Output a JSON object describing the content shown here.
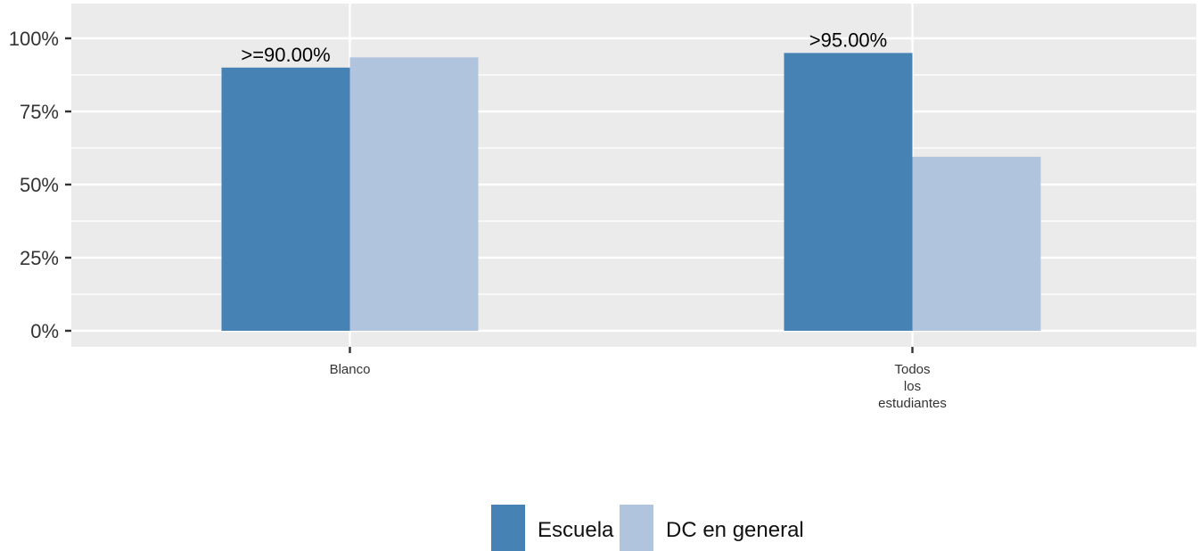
{
  "chart_data": {
    "type": "bar",
    "categories": [
      [
        "Blanco"
      ],
      [
        "Todos",
        "los",
        "estudiantes"
      ]
    ],
    "series": [
      {
        "name": "Escuela",
        "color": "#4682B4",
        "values": [
          90,
          95
        ]
      },
      {
        "name": "DC en general",
        "color": "#B0C4DE",
        "values": [
          93.5,
          59.5
        ]
      }
    ],
    "data_labels": [
      {
        "category_index": 0,
        "series_index": 0,
        "text": ">=90.00%"
      },
      {
        "category_index": 1,
        "series_index": 0,
        "text": ">95.00%"
      }
    ],
    "y_ticks": [
      0,
      25,
      50,
      75,
      100
    ],
    "y_tick_labels": [
      "0%",
      "25%",
      "50%",
      "75%",
      "100%"
    ],
    "ylim": [
      0,
      110
    ],
    "grid": true,
    "legend_position": "bottom",
    "colors": {
      "panel_background": "#EBEBEB",
      "grid": "#FFFFFF"
    }
  }
}
